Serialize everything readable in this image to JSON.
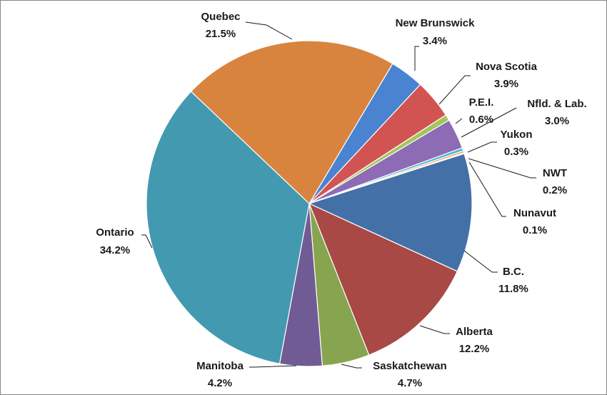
{
  "chart_data": {
    "type": "pie",
    "start_angle_deg": 59.2,
    "direction": "clockwise",
    "legend": "none",
    "slices": [
      {
        "label": "New Brunswick",
        "value": 3.4,
        "display": "3.4%",
        "color": "#4a84d1"
      },
      {
        "label": "Nova Scotia",
        "value": 3.9,
        "display": "3.9%",
        "color": "#d25452"
      },
      {
        "label": "P.E.I.",
        "value": 0.6,
        "display": "0.6%",
        "color": "#a3c65a"
      },
      {
        "label": "Nfld. & Lab.",
        "value": 3.0,
        "display": "3.0%",
        "color": "#8d6bb5"
      },
      {
        "label": "Yukon",
        "value": 0.3,
        "display": "0.3%",
        "color": "#4fb5d1"
      },
      {
        "label": "NWT",
        "value": 0.2,
        "display": "0.2%",
        "color": "#f2a162"
      },
      {
        "label": "Nunavut",
        "value": 0.1,
        "display": "0.1%",
        "color": "#9db6d6"
      },
      {
        "label": "B.C.",
        "value": 11.8,
        "display": "11.8%",
        "color": "#4470a8"
      },
      {
        "label": "Alberta",
        "value": 12.2,
        "display": "12.2%",
        "color": "#a84946"
      },
      {
        "label": "Saskatchewan",
        "value": 4.7,
        "display": "4.7%",
        "color": "#87a54f"
      },
      {
        "label": "Manitoba",
        "value": 4.2,
        "display": "4.2%",
        "color": "#715b94"
      },
      {
        "label": "Ontario",
        "value": 34.2,
        "display": "34.2%",
        "color": "#4299b0"
      },
      {
        "label": "Quebec",
        "value": 21.5,
        "display": "21.5%",
        "color": "#d8843e"
      }
    ]
  }
}
